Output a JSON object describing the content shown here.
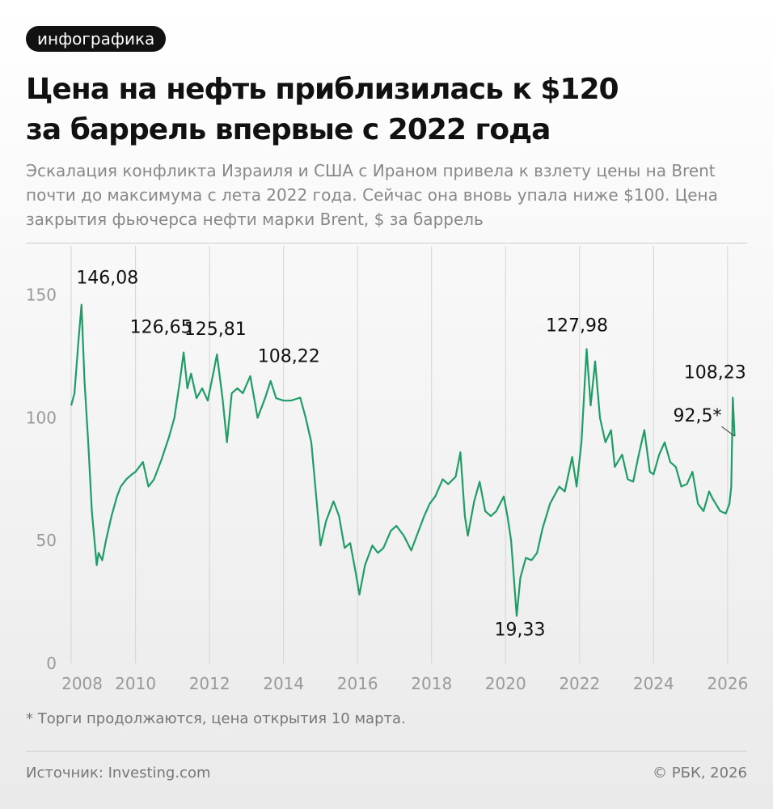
{
  "badge": "инфографика",
  "chart_data": {
    "type": "line",
    "title": "Цена на нефть приблизилась к $120 за баррель впервые с 2022 года",
    "subtitle": "Эскалация конфликта Израиля и США с Ираном привела к взлету цены на Brent почти до максимума с лета 2022 года. Сейчас она вновь упала ниже $100.",
    "y_label": "Цена закрытия фьючерса нефти марки Brent, $ за баррель",
    "x": [
      2008.26,
      2008.35,
      2008.45,
      2008.54,
      2008.62,
      2008.72,
      2008.82,
      2008.95,
      2009.0,
      2009.1,
      2009.2,
      2009.35,
      2009.5,
      2009.6,
      2009.75,
      2009.9,
      2010.0,
      2010.2,
      2010.35,
      2010.5,
      2010.7,
      2010.9,
      2011.05,
      2011.2,
      2011.3,
      2011.4,
      2011.5,
      2011.65,
      2011.8,
      2011.95,
      2012.1,
      2012.2,
      2012.35,
      2012.47,
      2012.6,
      2012.75,
      2012.9,
      2013.1,
      2013.3,
      2013.5,
      2013.65,
      2013.8,
      2014.0,
      2014.2,
      2014.45,
      2014.6,
      2014.75,
      2014.9,
      2015.0,
      2015.15,
      2015.35,
      2015.5,
      2015.65,
      2015.8,
      2015.95,
      2016.05,
      2016.2,
      2016.4,
      2016.55,
      2016.7,
      2016.9,
      2017.05,
      2017.25,
      2017.45,
      2017.6,
      2017.8,
      2017.95,
      2018.1,
      2018.3,
      2018.45,
      2018.65,
      2018.78,
      2018.9,
      2018.98,
      2019.15,
      2019.3,
      2019.45,
      2019.6,
      2019.75,
      2019.95,
      2020.05,
      2020.15,
      2020.3,
      2020.4,
      2020.55,
      2020.7,
      2020.85,
      2021.0,
      2021.2,
      2021.45,
      2021.6,
      2021.8,
      2021.92,
      2022.05,
      2022.19,
      2022.3,
      2022.42,
      2022.55,
      2022.7,
      2022.85,
      2022.95,
      2023.15,
      2023.3,
      2023.45,
      2023.6,
      2023.75,
      2023.9,
      2024.0,
      2024.15,
      2024.3,
      2024.45,
      2024.6,
      2024.75,
      2024.9,
      2025.05,
      2025.2,
      2025.35,
      2025.5,
      2025.6,
      2025.8,
      2025.95,
      2026.05,
      2026.1,
      2026.14,
      2026.19
    ],
    "series": [
      {
        "name": "Brent",
        "color": "#1f9d67",
        "values": [
          105,
          110,
          130,
          146.08,
          115,
          90,
          62,
          40,
          45,
          42,
          50,
          60,
          68,
          72,
          75,
          77,
          78,
          82,
          72,
          75,
          83,
          92,
          100,
          115,
          126.65,
          112,
          118,
          108,
          112,
          107,
          118,
          125.81,
          108,
          90,
          110,
          112,
          110,
          117,
          100,
          108,
          115,
          108,
          107,
          107,
          108.22,
          100,
          90,
          65,
          48,
          58,
          66,
          60,
          47,
          49,
          37,
          28,
          40,
          48,
          45,
          47,
          54,
          56,
          52,
          46,
          52,
          60,
          65,
          68,
          75,
          73,
          76,
          86,
          60,
          52,
          66,
          74,
          62,
          60,
          62,
          68,
          60,
          50,
          19.33,
          35,
          43,
          42,
          45,
          55,
          65,
          72,
          70,
          84,
          72,
          90,
          127.98,
          105,
          123,
          100,
          90,
          95,
          80,
          85,
          75,
          74,
          85,
          95,
          78,
          77,
          85,
          90,
          82,
          80,
          72,
          73,
          78,
          65,
          62,
          70,
          67,
          62,
          61,
          65,
          72,
          108.23,
          92.5
        ]
      }
    ],
    "annotations": [
      {
        "x": 2008.54,
        "value": 146.08,
        "label": "146,08"
      },
      {
        "x": 2011.3,
        "value": 126.65,
        "label": "126,65"
      },
      {
        "x": 2012.2,
        "value": 125.81,
        "label": "125,81"
      },
      {
        "x": 2014.45,
        "value": 108.22,
        "label": "108,22"
      },
      {
        "x": 2020.3,
        "value": 19.33,
        "label": "19,33"
      },
      {
        "x": 2022.19,
        "value": 127.98,
        "label": "127,98"
      },
      {
        "x": 2026.14,
        "value": 108.23,
        "label": "108,23"
      },
      {
        "x": 2026.19,
        "value": 92.5,
        "label": "92,5*"
      }
    ],
    "xlim": [
      2008.26,
      2026.2
    ],
    "ylim": [
      0,
      170
    ],
    "xticks": [
      2008,
      2010,
      2012,
      2014,
      2016,
      2018,
      2020,
      2022,
      2024,
      2026
    ],
    "yticks": [
      0,
      50,
      100,
      150
    ],
    "grid": true
  },
  "footnote": "* Торги продолжаются, цена открытия 10 марта.",
  "source": "Источник: Investing.com",
  "credit": "© РБК, 2026"
}
